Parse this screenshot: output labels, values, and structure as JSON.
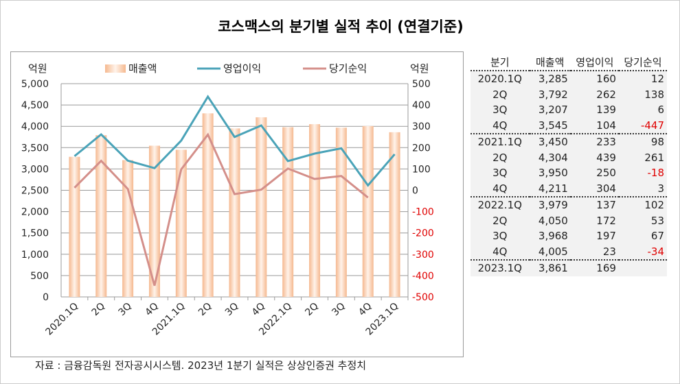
{
  "title": "코스맥스의 분기별 실적 추이 (연결기준)",
  "source": "자료 : 금융감독원 전자공시시스템. 2023년 1분기 실적은 상상인증권 추정치",
  "chart_data": {
    "type": "bar+line",
    "categories": [
      "2020.1Q",
      "2Q",
      "3Q",
      "4Q",
      "2021.1Q",
      "2Q",
      "3Q",
      "4Q",
      "2022.1Q",
      "2Q",
      "3Q",
      "4Q",
      "2023.1Q"
    ],
    "left_unit": "억원",
    "right_unit": "억원",
    "ylim_left": [
      0,
      5000
    ],
    "yticks_left": [
      "0",
      "500",
      "1,000",
      "1,500",
      "2,000",
      "2,500",
      "3,000",
      "3,500",
      "4,000",
      "4,500",
      "5,000"
    ],
    "ylim_right": [
      -500,
      500
    ],
    "yticks_right": [
      "-500",
      "-400",
      "-300",
      "-200",
      "-100",
      "0",
      "100",
      "200",
      "300",
      "400",
      "500"
    ],
    "series": [
      {
        "name": "매출액",
        "type": "bar",
        "axis": "left",
        "color": "#f7c9a8",
        "values": [
          3285,
          3792,
          3207,
          3545,
          3450,
          4304,
          3950,
          4211,
          3979,
          4050,
          3968,
          4005,
          3861
        ]
      },
      {
        "name": "영업이익",
        "type": "line",
        "axis": "right",
        "color": "#4aa3b8",
        "values": [
          160,
          262,
          139,
          104,
          233,
          439,
          250,
          304,
          137,
          172,
          197,
          23,
          169
        ]
      },
      {
        "name": "당기순익",
        "type": "line",
        "axis": "right",
        "color": "#d48f8a",
        "values": [
          12,
          138,
          6,
          -447,
          98,
          261,
          -18,
          3,
          102,
          53,
          67,
          -34,
          null
        ]
      }
    ],
    "legend": "top",
    "grid": true
  },
  "table": {
    "headers": [
      "분기",
      "매출액",
      "영업이익",
      "당기순익"
    ],
    "rows": [
      [
        "2020.1Q",
        "3,285",
        "160",
        "12"
      ],
      [
        "2Q",
        "3,792",
        "262",
        "138"
      ],
      [
        "3Q",
        "3,207",
        "139",
        "6"
      ],
      [
        "4Q",
        "3,545",
        "104",
        "-447"
      ],
      [
        "2021.1Q",
        "3,450",
        "233",
        "98"
      ],
      [
        "2Q",
        "4,304",
        "439",
        "261"
      ],
      [
        "3Q",
        "3,950",
        "250",
        "-18"
      ],
      [
        "4Q",
        "4,211",
        "304",
        "3"
      ],
      [
        "2022.1Q",
        "3,979",
        "137",
        "102"
      ],
      [
        "2Q",
        "4,050",
        "172",
        "53"
      ],
      [
        "3Q",
        "3,968",
        "197",
        "67"
      ],
      [
        "4Q",
        "4,005",
        "23",
        "-34"
      ],
      [
        "2023.1Q",
        "3,861",
        "169",
        ""
      ]
    ]
  }
}
